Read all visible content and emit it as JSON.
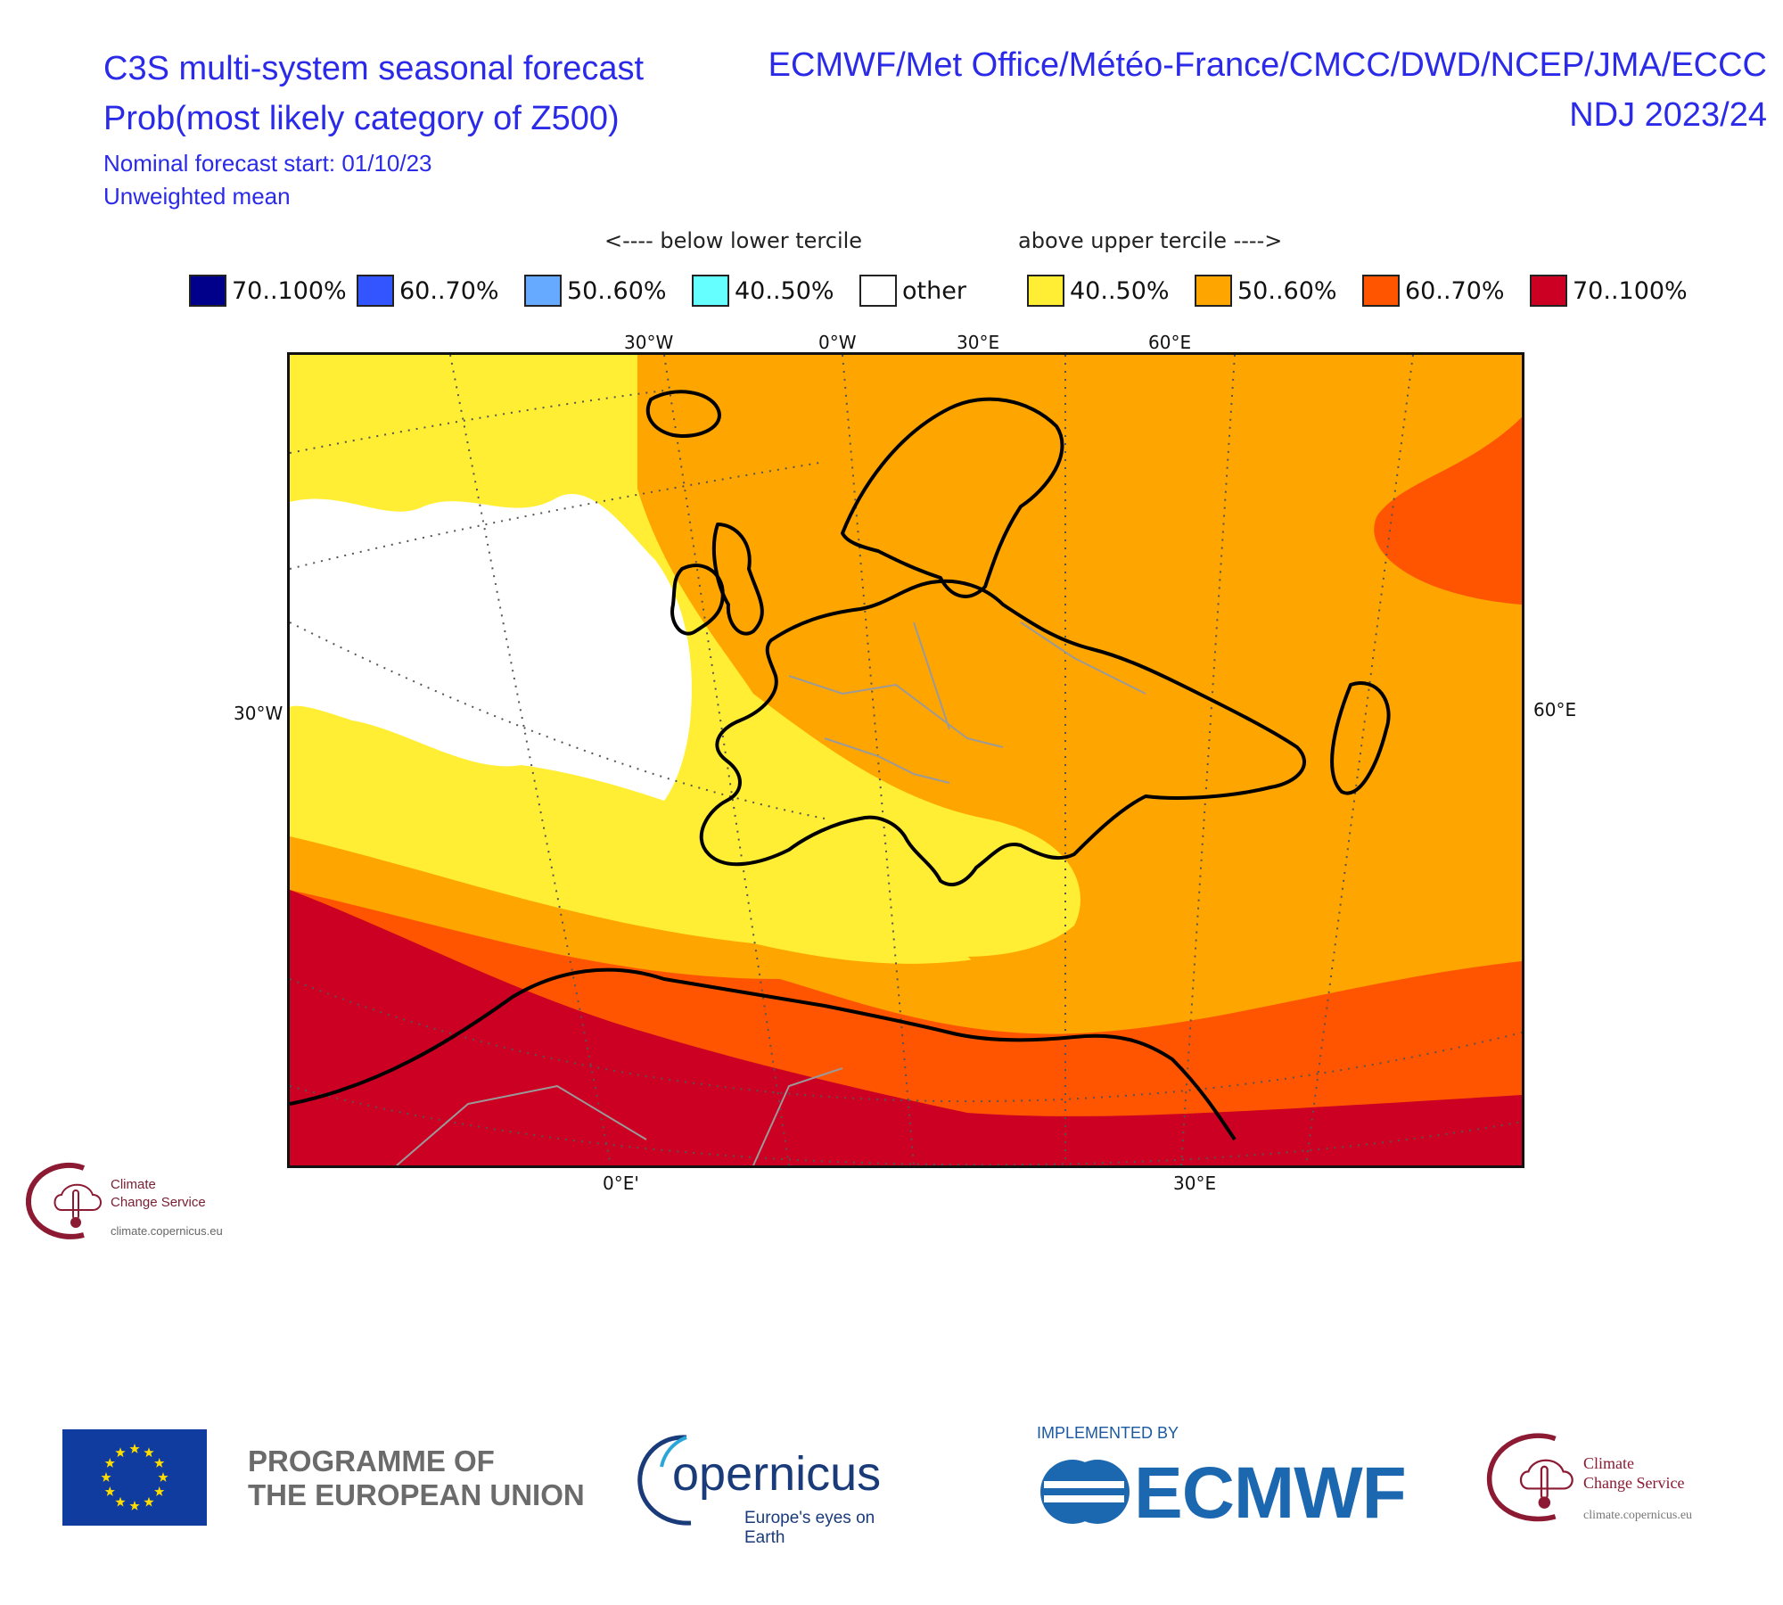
{
  "header": {
    "title_line1": "C3S multi-system seasonal forecast",
    "title_line2": "Prob(most likely category of Z500)",
    "forecast_start": "Nominal forecast start: 01/10/23",
    "weighting": "Unweighted mean",
    "centres": "ECMWF/Met Office/Météo-France/CMCC/DWD/NCEP/JMA/ECCC",
    "period": "NDJ 2023/24"
  },
  "legend": {
    "below_label": "<---- below lower tercile",
    "above_label": "above upper tercile ---->",
    "items": [
      {
        "label": "70..100%",
        "color": "#00008b"
      },
      {
        "label": "60..70%",
        "color": "#3355ff"
      },
      {
        "label": "50..60%",
        "color": "#66aaff"
      },
      {
        "label": "40..50%",
        "color": "#66ffff"
      },
      {
        "label": "other",
        "color": "#ffffff"
      },
      {
        "label": "40..50%",
        "color": "#ffee33"
      },
      {
        "label": "50..60%",
        "color": "#ffa500"
      },
      {
        "label": "60..70%",
        "color": "#ff5500"
      },
      {
        "label": "70..100%",
        "color": "#cc0022"
      }
    ]
  },
  "map": {
    "top_ticks": [
      "30°W",
      "0°W",
      "30°E",
      "60°E"
    ],
    "bottom_ticks": [
      "0°E'",
      "30°E"
    ],
    "left_tick": "30°W",
    "right_tick": "60°E",
    "colors": {
      "white": "#ffffff",
      "yellow": "#ffee33",
      "orange": "#ffa500",
      "red_orange": "#ff5500",
      "dark_red": "#cc0022"
    }
  },
  "logos": {
    "c3s_small_line1": "Climate",
    "c3s_small_line2": "Change Service",
    "c3s_small_url": "climate.copernicus.eu",
    "programme_line1": "PROGRAMME OF",
    "programme_line2": "THE EUROPEAN UNION",
    "copernicus_word": "opernicus",
    "copernicus_tagline": "Europe's eyes on Earth",
    "implemented_by": "IMPLEMENTED BY",
    "ecmwf_word": "ECMWF",
    "c3s_big_line1": "Climate",
    "c3s_big_line2": "Change Service",
    "c3s_big_url": "climate.copernicus.eu"
  }
}
